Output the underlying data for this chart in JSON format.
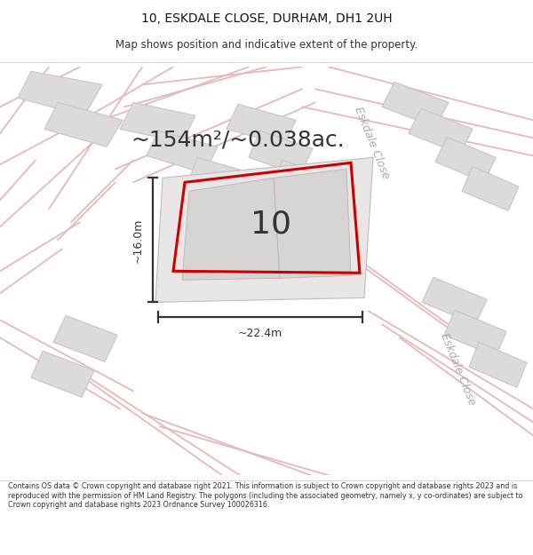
{
  "title": "10, ESKDALE CLOSE, DURHAM, DH1 2UH",
  "subtitle": "Map shows position and indicative extent of the property.",
  "area_text": "~154m²/~0.038ac.",
  "width_text": "~22.4m",
  "height_text": "~16.0m",
  "property_number": "10",
  "footer_text": "Contains OS data © Crown copyright and database right 2021. This information is subject to Crown copyright and database rights 2023 and is reproduced with the permission of HM Land Registry. The polygons (including the associated geometry, namely x, y co-ordinates) are subject to Crown copyright and database rights 2023 Ordnance Survey 100026316.",
  "map_bg": "#f2f0f0",
  "road_color": "#e8b8b8",
  "road_outline_color": "#e0a0a0",
  "property_fill": "#ede8e8",
  "property_outline_color": "#cc0000",
  "building_fill": "#dddada",
  "building_edge": "#c8c4c4",
  "dim_color": "#333333",
  "text_color": "#333333",
  "eskdale_color": "#aaaaaa",
  "title_fontsize": 10,
  "subtitle_fontsize": 8.5,
  "area_fontsize": 18,
  "number_fontsize": 26,
  "dim_fontsize": 9,
  "footer_fontsize": 5.8
}
